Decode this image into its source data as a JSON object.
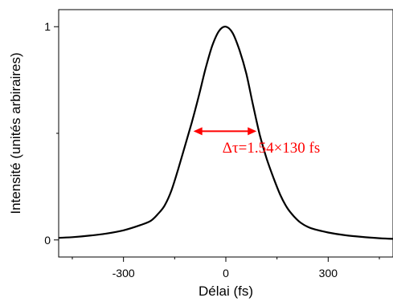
{
  "chart_data": {
    "type": "line",
    "xlabel": "Délai (fs)",
    "ylabel": "Intensité (unités arbiraires)",
    "xlim": [
      -490,
      490
    ],
    "ylim": [
      -0.08,
      1.08
    ],
    "xticks": [
      -300,
      0,
      300
    ],
    "xtick_labels": [
      "-300",
      "0",
      "300"
    ],
    "yticks": [
      0,
      1
    ],
    "ytick_labels": [
      "0",
      "1"
    ],
    "grid": false,
    "series": [
      {
        "color": "#000000",
        "x": [
          -490,
          -450,
          -400,
          -350,
          -300,
          -250,
          -220,
          -200,
          -180,
          -160,
          -140,
          -120,
          -100,
          -80,
          -60,
          -40,
          -20,
          0,
          20,
          40,
          60,
          80,
          100,
          120,
          140,
          160,
          180,
          200,
          220,
          250,
          300,
          350,
          400,
          450,
          490
        ],
        "y": [
          0.01,
          0.013,
          0.02,
          0.03,
          0.045,
          0.07,
          0.09,
          0.12,
          0.16,
          0.23,
          0.33,
          0.44,
          0.55,
          0.67,
          0.8,
          0.91,
          0.98,
          1.0,
          0.97,
          0.89,
          0.78,
          0.63,
          0.49,
          0.38,
          0.29,
          0.21,
          0.15,
          0.11,
          0.08,
          0.055,
          0.035,
          0.022,
          0.014,
          0.008,
          0.005
        ]
      }
    ],
    "annotation": {
      "text": "Δτ=1.54×130 fs",
      "color": "#ff0000",
      "arrow_x": [
        -95,
        90
      ],
      "arrow_y": 0.51,
      "text_x": -10,
      "text_y": 0.41
    }
  }
}
